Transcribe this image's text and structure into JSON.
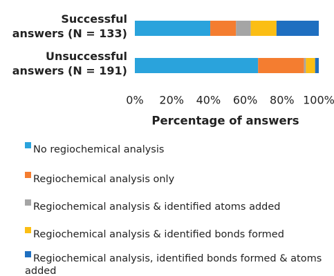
{
  "chart_data": {
    "type": "bar",
    "orientation": "horizontal",
    "stacked": true,
    "x_label": "Percentage of answers",
    "categories": [
      "Successful\nanswers (N = 133)",
      "Unsuccessful\nanswers (N = 191)"
    ],
    "series": [
      {
        "name": "No regiochemical analysis",
        "color": "#2aa3dc",
        "values": [
          41,
          67
        ]
      },
      {
        "name": "Regiochemical analysis only",
        "color": "#f47d30",
        "values": [
          14,
          25
        ]
      },
      {
        "name": "Regiochemical analysis & identified atoms added",
        "color": "#a5a5a5",
        "values": [
          8,
          1
        ]
      },
      {
        "name": "Regiochemical analysis & identified bonds formed",
        "color": "#fbbe14",
        "values": [
          14,
          5
        ]
      },
      {
        "name": "Regiochemical analysis, identified bonds formed & atoms added",
        "color": "#1f6fc0",
        "values": [
          23,
          2
        ]
      }
    ],
    "xlim": [
      0,
      100
    ],
    "xticks": [
      {
        "value": 0,
        "label": "0%"
      },
      {
        "value": 20,
        "label": "20%"
      },
      {
        "value": 40,
        "label": "40%"
      },
      {
        "value": 60,
        "label": "60%"
      },
      {
        "value": 80,
        "label": "80%"
      },
      {
        "value": 100,
        "label": "100%"
      }
    ],
    "legend": "bottom"
  }
}
